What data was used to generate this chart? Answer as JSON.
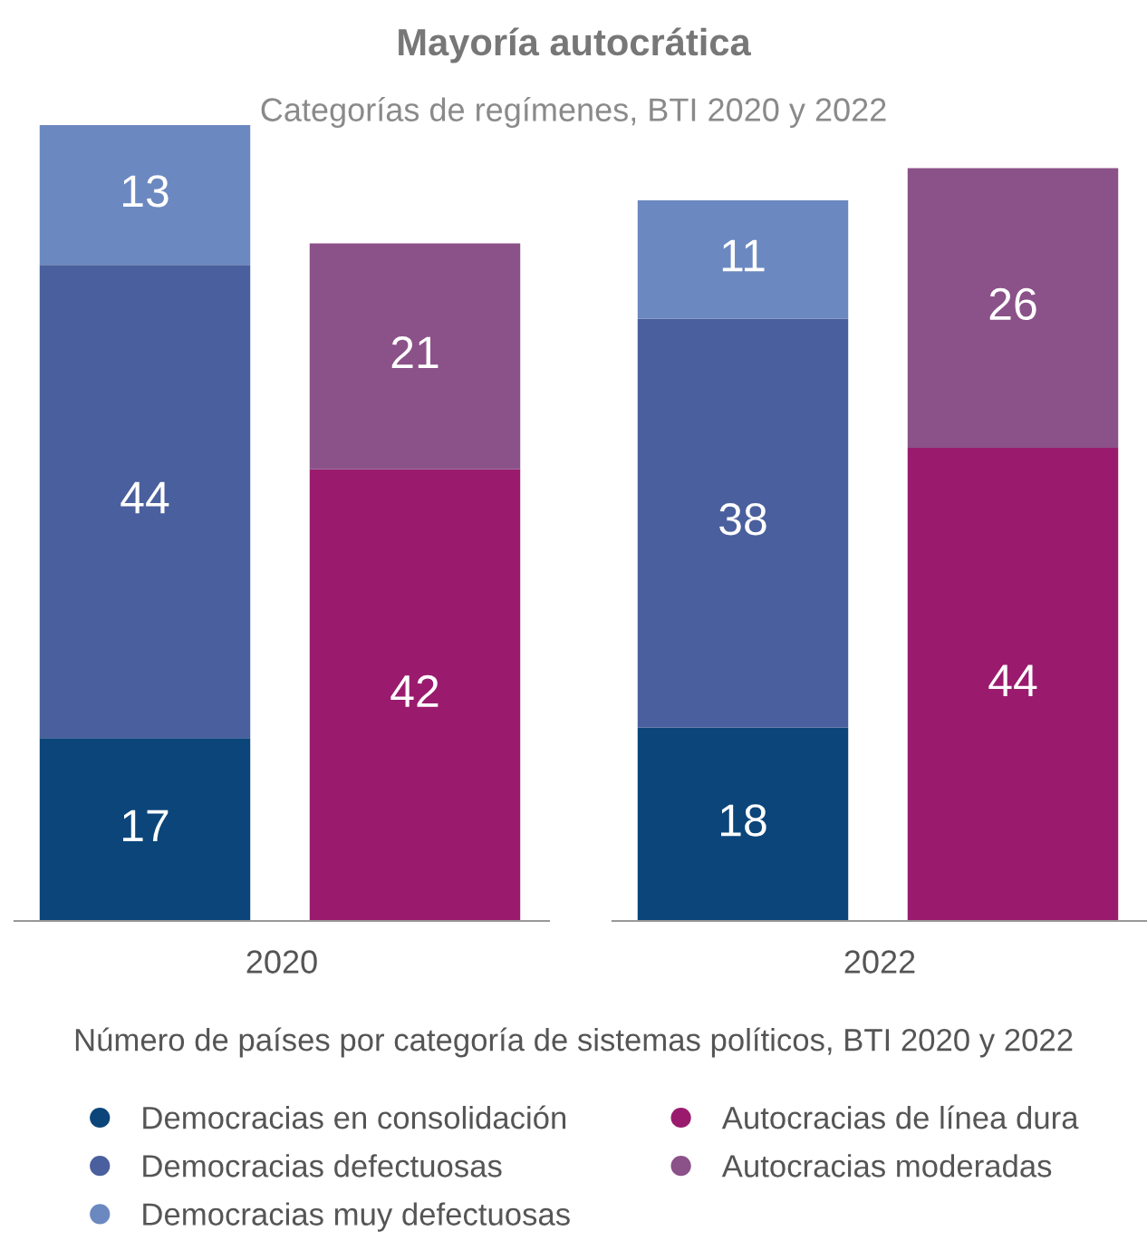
{
  "chart_data": [
    {
      "type": "bar",
      "subtitle": "Categorías de regímenes, BTI 2020 y 2022",
      "xlabel": "2020",
      "categories": [
        null
      ],
      "stacked": true,
      "data_labels": true,
      "legend": "bottom",
      "annotations": [
        "Número de países por categoría de sistemas políticos, BTI 2020 y 2022"
      ],
      "series": [
        {
          "name": "Democracias en consolidación",
          "color": "#0b457a",
          "values": [
            17
          ]
        },
        {
          "name": "Democracias defectuosas",
          "color": "#4a5f9d",
          "values": [
            44
          ]
        },
        {
          "name": "Democracias muy defectuosas",
          "color": "#6b88c0",
          "values": [
            13
          ]
        }
      ]
    },
    {
      "type": "bar",
      "title": "Mayoría autocrática",
      "categories": [
        null
      ],
      "stacked": true,
      "data_labels": true,
      "legend": "bottom",
      "series": [
        {
          "name": "Autocracias de línea dura",
          "color": "#9a1b6e",
          "values": [
            42
          ]
        },
        {
          "name": "Autocracias moderadas",
          "color": "#8b5189",
          "values": [
            21
          ]
        }
      ]
    },
    {
      "type": "bar",
      "xlabel": "2022",
      "categories": [
        null
      ],
      "stacked": true,
      "data_labels": true,
      "series": [
        {
          "color": "#0b457a",
          "values": [
            18
          ]
        },
        {
          "color": "#4a5f9d",
          "values": [
            38
          ]
        },
        {
          "color": "#6b88c0",
          "values": [
            11
          ]
        }
      ]
    },
    {
      "type": "bar",
      "categories": [
        null
      ],
      "stacked": true,
      "data_labels": true,
      "series": [
        {
          "color": "#9a1b6e",
          "values": [
            44
          ]
        },
        {
          "color": "#8b5189",
          "values": [
            26
          ]
        }
      ]
    }
  ]
}
